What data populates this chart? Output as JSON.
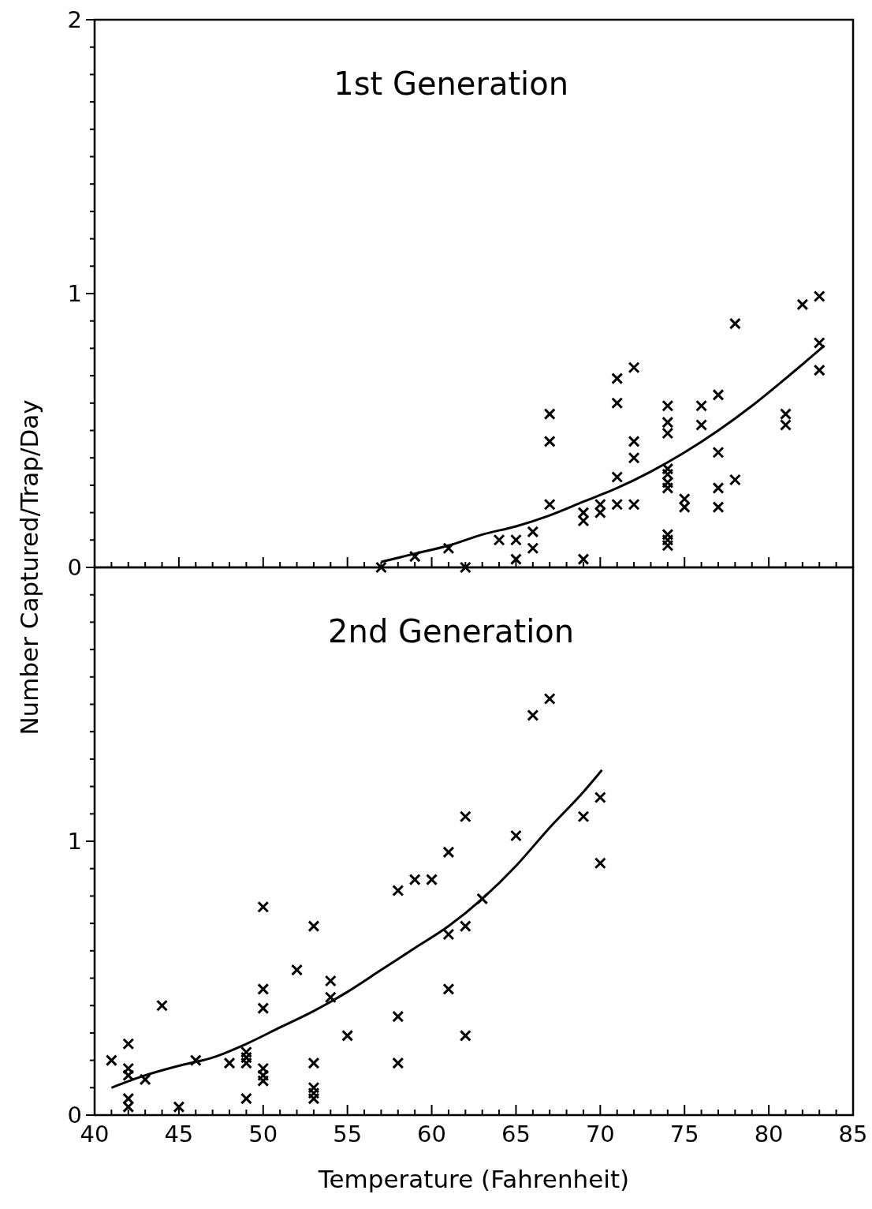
{
  "chart_data": [
    {
      "type": "scatter",
      "title": "1st Generation",
      "ylabel": "Number Captured/Trap/Day",
      "xlim": [
        40,
        85
      ],
      "ylim": [
        0,
        2
      ],
      "tick_labels": "y",
      "marker": "cross",
      "xticks": [
        40,
        {
          "value": 41,
          "label": null
        },
        {
          "value": 42,
          "label": null
        },
        {
          "value": 43,
          "label": null
        },
        {
          "value": 44,
          "label": null
        },
        45,
        {
          "value": 46,
          "label": null
        },
        {
          "value": 47,
          "label": null
        },
        {
          "value": 48,
          "label": null
        },
        {
          "value": 49,
          "label": null
        },
        50,
        {
          "value": 51,
          "label": null
        },
        {
          "value": 52,
          "label": null
        },
        {
          "value": 53,
          "label": null
        },
        {
          "value": 54,
          "label": null
        },
        55,
        {
          "value": 56,
          "label": null
        },
        {
          "value": 57,
          "label": null
        },
        {
          "value": 58,
          "label": null
        },
        {
          "value": 59,
          "label": null
        },
        60,
        {
          "value": 61,
          "label": null
        },
        {
          "value": 62,
          "label": null
        },
        {
          "value": 63,
          "label": null
        },
        {
          "value": 64,
          "label": null
        },
        65,
        {
          "value": 66,
          "label": null
        },
        {
          "value": 67,
          "label": null
        },
        {
          "value": 68,
          "label": null
        },
        {
          "value": 69,
          "label": null
        },
        70,
        {
          "value": 71,
          "label": null
        },
        {
          "value": 72,
          "label": null
        },
        {
          "value": 73,
          "label": null
        },
        {
          "value": 74,
          "label": null
        },
        75,
        {
          "value": 76,
          "label": null
        },
        {
          "value": 77,
          "label": null
        },
        {
          "value": 78,
          "label": null
        },
        {
          "value": 79,
          "label": null
        },
        80,
        {
          "value": 81,
          "label": null
        },
        {
          "value": 82,
          "label": null
        },
        {
          "value": 83,
          "label": null
        },
        {
          "value": 84,
          "label": null
        },
        85
      ],
      "yticks": [
        0,
        {
          "value": 0.1,
          "label": null
        },
        {
          "value": 0.2,
          "label": null
        },
        {
          "value": 0.3,
          "label": null
        },
        {
          "value": 0.4,
          "label": null
        },
        {
          "value": 0.5,
          "label": null
        },
        {
          "value": 0.6,
          "label": null
        },
        {
          "value": 0.7,
          "label": null
        },
        {
          "value": 0.8,
          "label": null
        },
        {
          "value": 0.9,
          "label": null
        },
        1,
        {
          "value": 1.1,
          "label": null
        },
        {
          "value": 1.2,
          "label": null
        },
        {
          "value": 1.3,
          "label": null
        },
        {
          "value": 1.4,
          "label": null
        },
        {
          "value": 1.5,
          "label": null
        },
        {
          "value": 1.6,
          "label": null
        },
        {
          "value": 1.7,
          "label": null
        },
        {
          "value": 1.8,
          "label": null
        },
        {
          "value": 1.9,
          "label": null
        },
        2
      ],
      "series": [
        {
          "color": "#000000",
          "x": [
            57,
            59,
            61,
            62,
            64,
            65,
            65,
            66,
            66,
            67,
            67,
            67,
            69,
            69,
            69,
            70,
            70,
            71,
            71,
            71,
            71,
            72,
            72,
            72,
            72,
            74,
            74,
            74,
            74,
            74,
            74,
            74,
            74,
            74,
            74,
            75,
            75,
            76,
            76,
            77,
            77,
            77,
            77,
            78,
            78,
            81,
            81,
            82,
            83,
            83,
            83
          ],
          "values": [
            0,
            0.04,
            0.07,
            0,
            0.1,
            0.1,
            0.03,
            0.13,
            0.07,
            0.56,
            0.46,
            0.23,
            0.2,
            0.17,
            0.03,
            0.23,
            0.2,
            0.69,
            0.6,
            0.33,
            0.23,
            0.73,
            0.46,
            0.4,
            0.23,
            0.59,
            0.53,
            0.49,
            0.36,
            0.34,
            0.31,
            0.29,
            0.12,
            0.1,
            0.08,
            0.25,
            0.22,
            0.59,
            0.52,
            0.63,
            0.42,
            0.29,
            0.22,
            0.89,
            0.32,
            0.56,
            0.52,
            0.96,
            0.99,
            0.82,
            0.72
          ]
        },
        {
          "type": "line",
          "color": "#000000",
          "marker": "none",
          "x": [
            57,
            59,
            61,
            63,
            65,
            67,
            69,
            71,
            73,
            75,
            77,
            79,
            81,
            83.3
          ],
          "values": [
            0.02,
            0.05,
            0.08,
            0.12,
            0.15,
            0.19,
            0.24,
            0.29,
            0.35,
            0.42,
            0.5,
            0.59,
            0.69,
            0.81
          ]
        }
      ]
    },
    {
      "type": "scatter",
      "title": "2nd Generation",
      "xlabel": "Temperature (Fahrenheit)",
      "xlim": [
        40,
        85
      ],
      "ylim": [
        0,
        2
      ],
      "marker": "cross",
      "xticks": [
        40,
        {
          "value": 41,
          "label": null
        },
        {
          "value": 42,
          "label": null
        },
        {
          "value": 43,
          "label": null
        },
        {
          "value": 44,
          "label": null
        },
        45,
        {
          "value": 46,
          "label": null
        },
        {
          "value": 47,
          "label": null
        },
        {
          "value": 48,
          "label": null
        },
        {
          "value": 49,
          "label": null
        },
        50,
        {
          "value": 51,
          "label": null
        },
        {
          "value": 52,
          "label": null
        },
        {
          "value": 53,
          "label": null
        },
        {
          "value": 54,
          "label": null
        },
        55,
        {
          "value": 56,
          "label": null
        },
        {
          "value": 57,
          "label": null
        },
        {
          "value": 58,
          "label": null
        },
        {
          "value": 59,
          "label": null
        },
        60,
        {
          "value": 61,
          "label": null
        },
        {
          "value": 62,
          "label": null
        },
        {
          "value": 63,
          "label": null
        },
        {
          "value": 64,
          "label": null
        },
        65,
        {
          "value": 66,
          "label": null
        },
        {
          "value": 67,
          "label": null
        },
        {
          "value": 68,
          "label": null
        },
        {
          "value": 69,
          "label": null
        },
        70,
        {
          "value": 71,
          "label": null
        },
        {
          "value": 72,
          "label": null
        },
        {
          "value": 73,
          "label": null
        },
        {
          "value": 74,
          "label": null
        },
        75,
        {
          "value": 76,
          "label": null
        },
        {
          "value": 77,
          "label": null
        },
        {
          "value": 78,
          "label": null
        },
        {
          "value": 79,
          "label": null
        },
        80,
        {
          "value": 81,
          "label": null
        },
        {
          "value": 82,
          "label": null
        },
        {
          "value": 83,
          "label": null
        },
        {
          "value": 84,
          "label": null
        },
        85
      ],
      "yticks": [
        0,
        {
          "value": 0.1,
          "label": null
        },
        {
          "value": 0.2,
          "label": null
        },
        {
          "value": 0.3,
          "label": null
        },
        {
          "value": 0.4,
          "label": null
        },
        {
          "value": 0.5,
          "label": null
        },
        {
          "value": 0.6,
          "label": null
        },
        {
          "value": 0.7,
          "label": null
        },
        {
          "value": 0.8,
          "label": null
        },
        {
          "value": 0.9,
          "label": null
        },
        1,
        {
          "value": 1.1,
          "label": null
        },
        {
          "value": 1.2,
          "label": null
        },
        {
          "value": 1.3,
          "label": null
        },
        {
          "value": 1.4,
          "label": null
        },
        {
          "value": 1.5,
          "label": null
        },
        {
          "value": 1.6,
          "label": null
        },
        {
          "value": 1.7,
          "label": null
        },
        {
          "value": 1.8,
          "label": null
        },
        {
          "value": 1.9,
          "label": null
        }
      ],
      "series": [
        {
          "color": "#000000",
          "x": [
            41,
            42,
            42,
            42,
            42,
            42,
            43,
            44,
            45,
            46,
            48,
            49,
            49,
            49,
            49,
            50,
            50,
            50,
            50,
            50,
            50,
            52,
            53,
            53,
            53,
            53,
            53,
            54,
            54,
            55,
            58,
            58,
            58,
            59,
            60,
            61,
            61,
            61,
            62,
            62,
            62,
            63,
            65,
            66,
            67,
            69,
            70,
            70
          ],
          "values": [
            0.2,
            0.26,
            0.17,
            0.145,
            0.06,
            0.03,
            0.13,
            0.4,
            0.03,
            0.2,
            0.19,
            0.23,
            0.21,
            0.19,
            0.06,
            0.76,
            0.46,
            0.39,
            0.17,
            0.145,
            0.125,
            0.53,
            0.69,
            0.19,
            0.1,
            0.08,
            0.06,
            0.49,
            0.43,
            0.29,
            0.82,
            0.36,
            0.19,
            0.86,
            0.86,
            0.96,
            0.66,
            0.46,
            1.09,
            0.69,
            0.29,
            0.79,
            1.02,
            1.46,
            1.52,
            1.09,
            1.16,
            0.92
          ]
        },
        {
          "type": "line",
          "color": "#000000",
          "marker": "none",
          "x": [
            41,
            43,
            45,
            47,
            49,
            51,
            53,
            55,
            57,
            59,
            61,
            63,
            65,
            67,
            69,
            70.1
          ],
          "values": [
            0.1,
            0.145,
            0.18,
            0.21,
            0.26,
            0.32,
            0.38,
            0.45,
            0.53,
            0.61,
            0.69,
            0.79,
            0.91,
            1.05,
            1.18,
            1.26
          ]
        }
      ]
    }
  ]
}
